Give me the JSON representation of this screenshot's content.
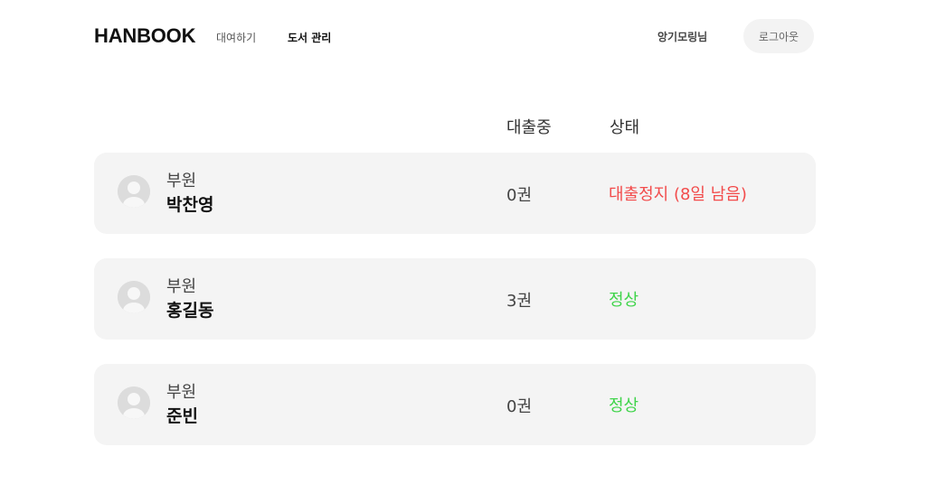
{
  "header": {
    "logo": "HANBOOK",
    "nav": [
      {
        "label": "대여하기",
        "active": false
      },
      {
        "label": "도서 관리",
        "active": true
      }
    ],
    "user_name": "앙기모링님",
    "logout_label": "로그아웃"
  },
  "columns": {
    "loan": "대출중",
    "status": "상태"
  },
  "members": [
    {
      "role": "부원",
      "name": "박찬영",
      "loan": "0권",
      "status": "대출정지 (8일 남음)",
      "status_color": "#f24b4b"
    },
    {
      "role": "부원",
      "name": "홍길동",
      "loan": "3권",
      "status": "정상",
      "status_color": "#3fd44a"
    },
    {
      "role": "부원",
      "name": "준빈",
      "loan": "0권",
      "status": "정상",
      "status_color": "#3fd44a"
    }
  ],
  "icons": {
    "avatar": "user-avatar-icon"
  }
}
